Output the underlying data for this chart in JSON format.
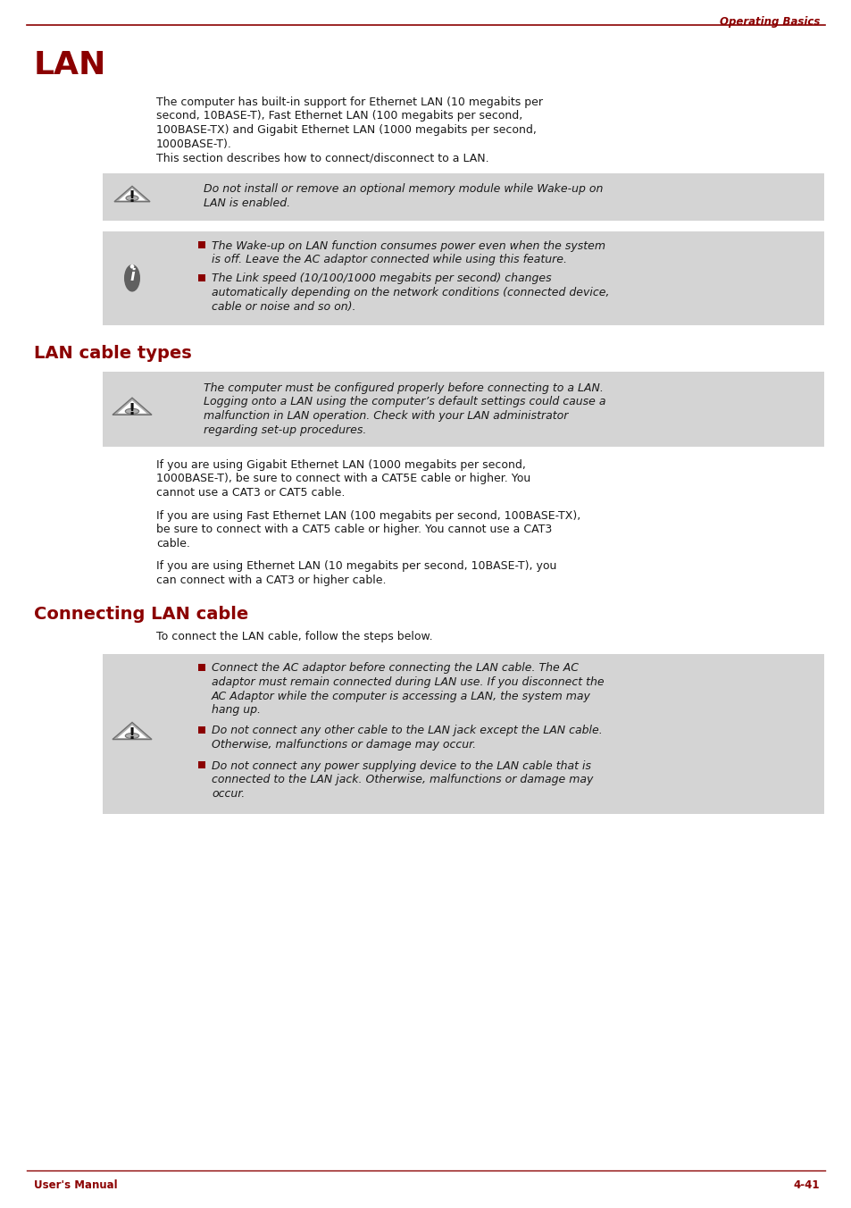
{
  "bg_color": "#ffffff",
  "dark_red": "#8B0000",
  "black": "#1a1a1a",
  "gray_bg": "#d4d4d4",
  "header_text": "Operating Basics",
  "footer_left": "User's Manual",
  "footer_right": "4-41",
  "title_lan": "LAN",
  "title_cable": "LAN cable types",
  "title_connecting": "Connecting LAN cable",
  "para1_lines": [
    "The computer has built-in support for Ethernet LAN (10 megabits per",
    "second, 10BASE-T), Fast Ethernet LAN (100 megabits per second,",
    "100BASE-TX) and Gigabit Ethernet LAN (1000 megabits per second,",
    "1000BASE-T).",
    "This section describes how to connect/disconnect to a LAN."
  ],
  "warn1_lines": [
    "Do not install or remove an optional memory module while Wake-up on",
    "LAN is enabled."
  ],
  "info1_bullet1_lines": [
    "The Wake-up on LAN function consumes power even when the system",
    "is off. Leave the AC adaptor connected while using this feature."
  ],
  "info1_bullet2_lines": [
    "The Link speed (10/100/1000 megabits per second) changes",
    "automatically depending on the network conditions (connected device,",
    "cable or noise and so on)."
  ],
  "warn2_lines": [
    "The computer must be configured properly before connecting to a LAN.",
    "Logging onto a LAN using the computer’s default settings could cause a",
    "malfunction in LAN operation. Check with your LAN administrator",
    "regarding set-up procedures."
  ],
  "para_cable1_lines": [
    "If you are using Gigabit Ethernet LAN (1000 megabits per second,",
    "1000BASE-T), be sure to connect with a CAT5E cable or higher. You",
    "cannot use a CAT3 or CAT5 cable."
  ],
  "para_cable2_lines": [
    "If you are using Fast Ethernet LAN (100 megabits per second, 100BASE-TX),",
    "be sure to connect with a CAT5 cable or higher. You cannot use a CAT3",
    "cable."
  ],
  "para_cable3_lines": [
    "If you are using Ethernet LAN (10 megabits per second, 10BASE-T), you",
    "can connect with a CAT3 or higher cable."
  ],
  "para_connect1": "To connect the LAN cable, follow the steps below.",
  "warn3_bullet1_lines": [
    "Connect the AC adaptor before connecting the LAN cable. The AC",
    "adaptor must remain connected during LAN use. If you disconnect the",
    "AC Adaptor while the computer is accessing a LAN, the system may",
    "hang up."
  ],
  "warn3_bullet2_lines": [
    "Do not connect any other cable to the LAN jack except the LAN cable.",
    "Otherwise, malfunctions or damage may occur."
  ],
  "warn3_bullet3_lines": [
    "Do not connect any power supplying device to the LAN cable that is",
    "connected to the LAN jack. Otherwise, malfunctions or damage may",
    "occur."
  ]
}
